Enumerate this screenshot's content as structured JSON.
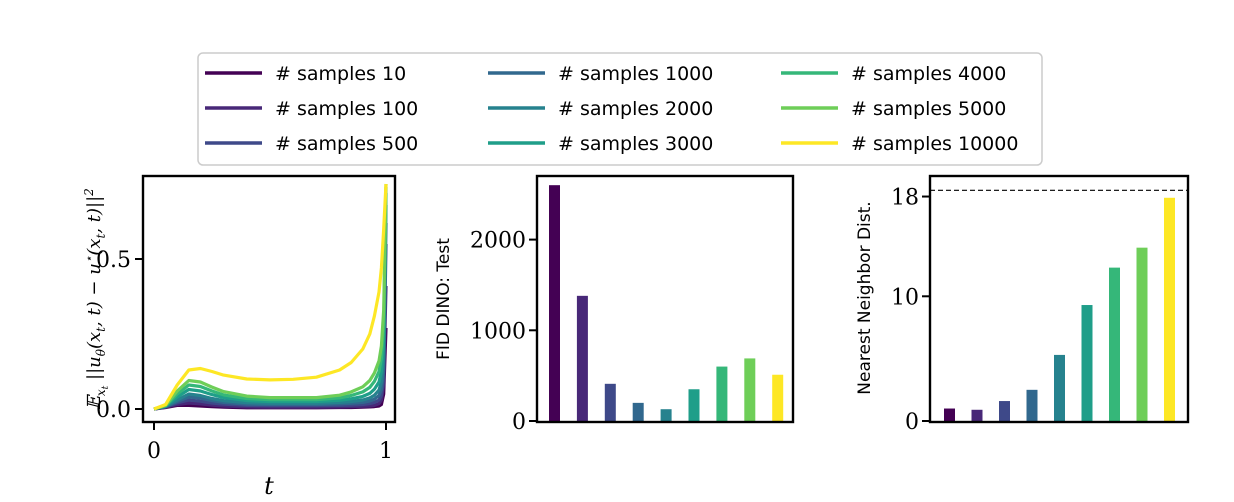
{
  "legend": {
    "entries": [
      {
        "label": "# samples 10",
        "color": "#440154"
      },
      {
        "label": "# samples 100",
        "color": "#482878"
      },
      {
        "label": "# samples 500",
        "color": "#3e4989"
      },
      {
        "label": "# samples 1000",
        "color": "#31688e"
      },
      {
        "label": "# samples 2000",
        "color": "#26828e"
      },
      {
        "label": "# samples 3000",
        "color": "#1f9e89"
      },
      {
        "label": "# samples 4000",
        "color": "#35b779"
      },
      {
        "label": "# samples 5000",
        "color": "#6ece58"
      },
      {
        "label": "# samples 10000",
        "color": "#fde725"
      }
    ]
  },
  "chart_data": [
    {
      "type": "line",
      "ylabel": "E_{x_t} ||u_θ(x_t, t) − u*(x_t, t)||²",
      "xlabel": "t",
      "xlim": [
        0,
        1
      ],
      "ylim": [
        -0.02,
        0.77
      ],
      "xticks": [
        "0",
        "1"
      ],
      "yticks": [
        "0.0",
        "0.5"
      ],
      "xtick_values": [
        0,
        1
      ],
      "ytick_values": [
        0.0,
        0.5
      ],
      "x": [
        0.0,
        0.05,
        0.1,
        0.15,
        0.2,
        0.25,
        0.3,
        0.4,
        0.5,
        0.6,
        0.7,
        0.8,
        0.85,
        0.9,
        0.93,
        0.95,
        0.97,
        0.98,
        0.99,
        1.0
      ],
      "series": [
        {
          "name": "# samples 10",
          "values": [
            0.0,
            0.005,
            0.012,
            0.012,
            0.01,
            0.008,
            0.006,
            0.004,
            0.004,
            0.004,
            0.004,
            0.005,
            0.005,
            0.006,
            0.007,
            0.008,
            0.01,
            0.015,
            0.05,
            0.27
          ]
        },
        {
          "name": "# samples 100",
          "values": [
            0.0,
            0.006,
            0.015,
            0.02,
            0.017,
            0.013,
            0.01,
            0.007,
            0.006,
            0.006,
            0.006,
            0.007,
            0.008,
            0.009,
            0.01,
            0.012,
            0.018,
            0.03,
            0.08,
            0.41
          ]
        },
        {
          "name": "# samples 500",
          "values": [
            0.0,
            0.007,
            0.02,
            0.03,
            0.026,
            0.02,
            0.016,
            0.012,
            0.011,
            0.011,
            0.011,
            0.012,
            0.013,
            0.015,
            0.018,
            0.022,
            0.03,
            0.045,
            0.1,
            0.55
          ]
        },
        {
          "name": "# samples 1000",
          "values": [
            0.0,
            0.008,
            0.025,
            0.04,
            0.036,
            0.028,
            0.022,
            0.016,
            0.015,
            0.015,
            0.015,
            0.017,
            0.019,
            0.022,
            0.027,
            0.033,
            0.045,
            0.065,
            0.13,
            0.62
          ]
        },
        {
          "name": "# samples 2000",
          "values": [
            0.0,
            0.009,
            0.03,
            0.05,
            0.045,
            0.035,
            0.028,
            0.021,
            0.019,
            0.019,
            0.019,
            0.022,
            0.025,
            0.03,
            0.037,
            0.046,
            0.063,
            0.09,
            0.17,
            0.68
          ]
        },
        {
          "name": "# samples 3000",
          "values": [
            0.0,
            0.01,
            0.04,
            0.065,
            0.06,
            0.048,
            0.038,
            0.028,
            0.025,
            0.025,
            0.025,
            0.029,
            0.034,
            0.042,
            0.052,
            0.066,
            0.09,
            0.125,
            0.22,
            0.72
          ]
        },
        {
          "name": "# samples 4000",
          "values": [
            0.0,
            0.011,
            0.05,
            0.08,
            0.075,
            0.06,
            0.047,
            0.035,
            0.031,
            0.031,
            0.031,
            0.037,
            0.045,
            0.057,
            0.072,
            0.092,
            0.125,
            0.17,
            0.28,
            0.74
          ]
        },
        {
          "name": "# samples 5000",
          "values": [
            0.0,
            0.012,
            0.06,
            0.095,
            0.09,
            0.073,
            0.058,
            0.043,
            0.038,
            0.038,
            0.038,
            0.046,
            0.057,
            0.074,
            0.095,
            0.12,
            0.16,
            0.21,
            0.33,
            0.75
          ]
        },
        {
          "name": "# samples 10000",
          "values": [
            0.0,
            0.015,
            0.08,
            0.13,
            0.135,
            0.125,
            0.113,
            0.1,
            0.097,
            0.099,
            0.106,
            0.13,
            0.155,
            0.2,
            0.25,
            0.31,
            0.39,
            0.47,
            0.6,
            0.75
          ]
        }
      ]
    },
    {
      "type": "bar",
      "ylabel": "FID DINO: Test",
      "ylim": [
        0,
        2800
      ],
      "yticks": [
        "0",
        "1000",
        "2000"
      ],
      "ytick_values": [
        0,
        1000,
        2000
      ],
      "categories": [
        "# samples 10",
        "# samples 100",
        "# samples 500",
        "# samples 1000",
        "# samples 2000",
        "# samples 3000",
        "# samples 4000",
        "# samples 5000",
        "# samples 10000"
      ],
      "values": [
        2600,
        1380,
        410,
        200,
        130,
        350,
        600,
        690,
        510
      ]
    },
    {
      "type": "bar",
      "ylabel": "Nearest Neighbor Dist.",
      "ylim": [
        0,
        20
      ],
      "yticks": [
        "0",
        "10",
        "18"
      ],
      "ytick_values": [
        0,
        10,
        18
      ],
      "reference_line": 18.5,
      "categories": [
        "# samples 10",
        "# samples 100",
        "# samples 500",
        "# samples 1000",
        "# samples 2000",
        "# samples 3000",
        "# samples 4000",
        "# samples 5000",
        "# samples 10000"
      ],
      "values": [
        1.0,
        0.9,
        1.6,
        2.5,
        5.3,
        9.3,
        12.3,
        13.9,
        17.9
      ]
    }
  ]
}
